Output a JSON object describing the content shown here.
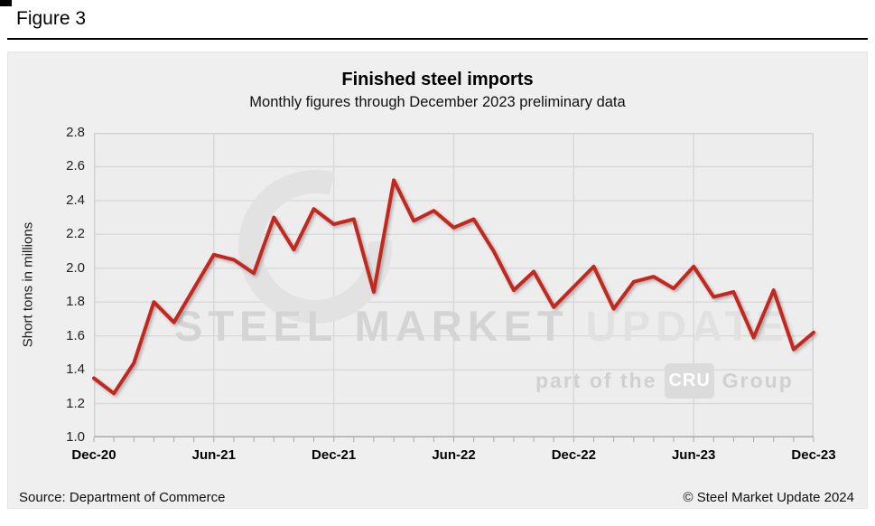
{
  "figure_label": "Figure 3",
  "chart_data": {
    "type": "line",
    "title": "Finished steel imports",
    "subtitle": "Monthly figures through December 2023 preliminary data",
    "ylabel": "Short tons in millions",
    "xlabel": "",
    "ylim": [
      1.0,
      2.8
    ],
    "y_tick_step": 0.2,
    "y_tick_labels": [
      "1.0",
      "1.2",
      "1.4",
      "1.6",
      "1.8",
      "2.0",
      "2.2",
      "2.4",
      "2.6",
      "2.8"
    ],
    "x_tick_every": 6,
    "x_tick_labels": [
      "Dec-20",
      "Jun-21",
      "Dec-21",
      "Jun-22",
      "Dec-22",
      "Jun-23",
      "Dec-23"
    ],
    "grid": true,
    "legend": "none",
    "line_color": "#c3271d",
    "x_labels": [
      "Dec-20",
      "Jan-21",
      "Feb-21",
      "Mar-21",
      "Apr-21",
      "May-21",
      "Jun-21",
      "Jul-21",
      "Aug-21",
      "Sep-21",
      "Oct-21",
      "Nov-21",
      "Dec-21",
      "Jan-22",
      "Feb-22",
      "Mar-22",
      "Apr-22",
      "May-22",
      "Jun-22",
      "Jul-22",
      "Aug-22",
      "Sep-22",
      "Oct-22",
      "Nov-22",
      "Dec-22",
      "Jan-23",
      "Feb-23",
      "Mar-23",
      "Apr-23",
      "May-23",
      "Jun-23",
      "Jul-23",
      "Aug-23",
      "Sep-23",
      "Oct-23",
      "Nov-23",
      "Dec-23"
    ],
    "series": [
      {
        "name": "Finished steel imports",
        "values": [
          1.35,
          1.26,
          1.44,
          1.8,
          1.68,
          1.88,
          2.08,
          2.05,
          1.97,
          2.3,
          2.11,
          2.35,
          2.26,
          2.29,
          1.86,
          2.52,
          2.28,
          2.34,
          2.24,
          2.29,
          2.1,
          1.87,
          1.98,
          1.77,
          1.89,
          2.01,
          1.76,
          1.92,
          1.95,
          1.88,
          2.01,
          1.83,
          1.86,
          1.59,
          1.87,
          1.52,
          1.62
        ]
      }
    ]
  },
  "watermark": {
    "line1_strong": "STEEL MARKET",
    "line1_light": " UPDATE",
    "line2_pre": "part of the",
    "line2_badge": "CRU",
    "line2_post": "Group"
  },
  "footer": {
    "source": "Source: Department of Commerce",
    "copyright": "© Steel Market Update 2024"
  }
}
